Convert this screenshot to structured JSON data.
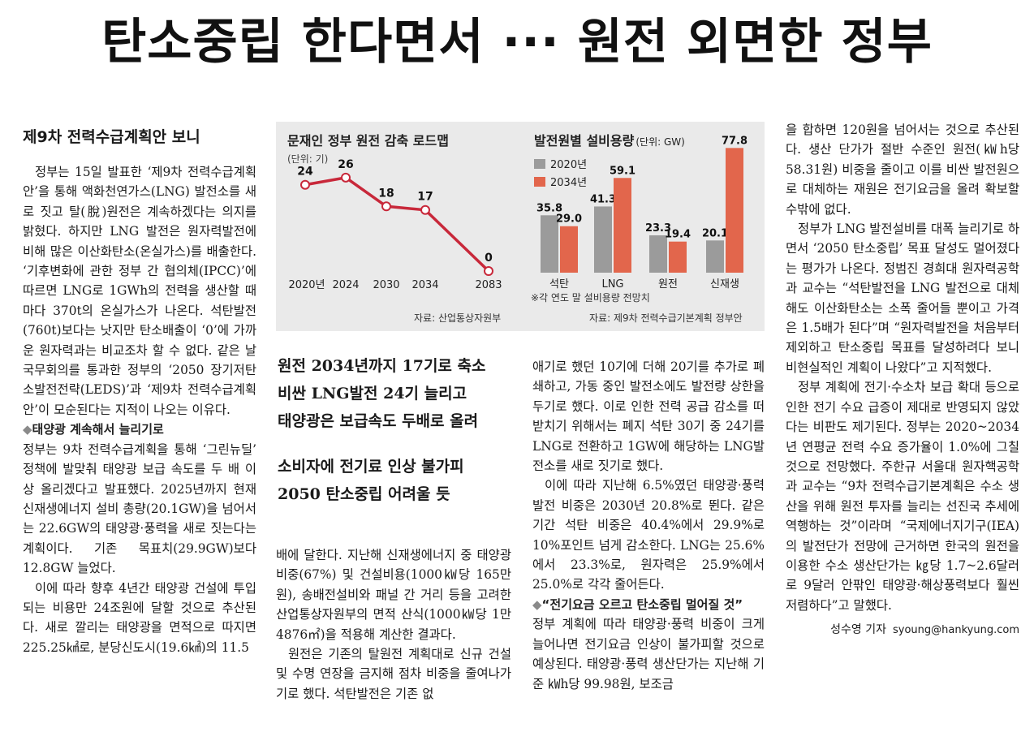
{
  "headline": "탄소중립 한다면서 ··· 원전 외면한 정부",
  "infobox": {
    "left_title": "문재인 정부 원전 감축 로드맵",
    "left_unit": "(단위: 기)",
    "left_source": "자료: 산업통상자원부",
    "right_title": "발전원별 설비용량",
    "right_unit": "(단위: GW)",
    "right_note": "※각 연도 말 설비용량 전망치",
    "right_source": "자료: 제9차 전력수급기본계획 정부안"
  },
  "chart_data": [
    {
      "type": "line",
      "title": "문재인 정부 원전 감축 로드맵",
      "ylabel": "(단위: 기)",
      "x": [
        "2020년",
        "2024",
        "2030",
        "2034",
        "2083"
      ],
      "values": [
        24,
        26,
        18,
        17,
        0
      ],
      "ylim": [
        0,
        28
      ],
      "color": "#c8283a"
    },
    {
      "type": "bar",
      "title": "발전원별 설비용량",
      "ylabel": "(단위: GW)",
      "categories": [
        "석탄",
        "LNG",
        "원전",
        "신재생"
      ],
      "series": [
        {
          "name": "2020년",
          "values": [
            35.8,
            41.3,
            23.3,
            20.1
          ],
          "color": "#9b9b9b"
        },
        {
          "name": "2034년",
          "values": [
            29.0,
            59.1,
            19.4,
            77.8
          ],
          "color": "#e2664c"
        }
      ],
      "ylim": [
        0,
        80
      ],
      "legend": "top-left"
    }
  ],
  "article": {
    "subhead": "제9차 전력수급계획안 보니",
    "col1": [
      "정부는 15일 발표한 ‘제9차 전력수급계획안’을 통해 액화천연가스(LNG) 발전소를 새로 짓고 탈(脫)원전은 계속하겠다는 의지를 밝혔다. 하지만 LNG 발전은 원자력발전에 비해 많은 이산화탄소(온실가스)를 배출한다. ‘기후변화에 관한 정부 간 협의체(IPCC)’에 따르면 LNG로 1GWh의 전력을 생산할 때마다 370t의 온실가스가 나온다. 석탄발전(760t)보다는 낫지만 탄소배출이 ‘0’에 가까운 원자력과는 비교조차 할 수 없다. 같은 날 국무회의를 통과한 정부의 ‘2050 장기저탄소발전전략(LEDS)’과 ‘제9차 전력수급계획안’이 모순된다는 지적이 나오는 이유다."
    ],
    "mini1": "태양광 계속해서 늘리기로",
    "mini_bullet": "◆",
    "col1b": [
      "정부는 9차 전력수급계획을 통해 ‘그린뉴딜’ 정책에 발맞춰 태양광 보급 속도를 두 배 이상 올리겠다고 발표했다. 2025년까지 현재 신재생에너지 설비 총량(20.1GW)을 넘어서는 22.6GW의 태양광·풍력을 새로 짓는다는 계획이다. 기존 목표치(29.9GW)보다 12.8GW 늘었다.",
      "이에 따라 향후 4년간 태양광 건설에 투입되는 비용만 24조원에 달할 것으로 추산된다. 새로 깔리는 태양광을 면적으로 따지면 225.25㎢로, 분당신도시(19.6㎢)의 11.5"
    ],
    "deck": [
      "원전 2034년까지 17기로 축소",
      "비싼 LNG발전 24기 늘리고",
      "태양광은 보급속도 두배로 올려",
      "소비자에 전기료 인상 불가피",
      "2050 탄소중립 어려울 듯"
    ],
    "col2": [
      "배에 달한다. 지난해 신재생에너지 중 태양광 비중(67%) 및 건설비용(1000㎾당 165만원), 송배전설비와 패널 간 거리 등을 고려한 산업통상자원부의 면적 산식(1000㎾당 1만4876㎡)을 적용해 계산한 결과다.",
      "원전은 기존의 탈원전 계획대로 신규 건설 및 수명 연장을 금지해 점차 비중을 줄여나가기로 했다. 석탄발전은 기존 없"
    ],
    "col3": [
      "애기로 했던 10기에 더해 20기를 추가로 폐쇄하고, 가동 중인 발전소에도 발전량 상한을 두기로 했다. 이로 인한 전력 공급 감소를 떠받치기 위해서는 폐지 석탄 30기 중 24기를 LNG로 전환하고 1GW에 해당하는 LNG발전소를 새로 짓기로 했다.",
      "이에 따라 지난해 6.5%였던 태양광·풍력발전 비중은 2030년 20.8%로 뛴다. 같은 기간 석탄 비중은 40.4%에서 29.9%로 10%포인트 넘게 감소한다. LNG는 25.6%에서 23.3%로, 원자력은 25.9%에서 25.0%로 각각 줄어든다."
    ],
    "mini2": "“전기요금 오르고 탄소중립 멀어질 것”",
    "col3b": [
      "정부 계획에 따라 태양광·풍력 비중이 크게 늘어나면 전기요금 인상이 불가피할 것으로 예상된다. 태양광·풍력 생산단가는 지난해 기준 ㎾h당 99.98원, 보조금"
    ],
    "col4": [
      "을 합하면 120원을 넘어서는 것으로 추산된다. 생산 단가가 절반 수준인 원전(㎾h당 58.31원) 비중을 줄이고 이를 비싼 발전원으로 대체하는 재원은 전기요금을 올려 확보할 수밖에 없다.",
      "정부가 LNG 발전설비를 대폭 늘리기로 하면서 ‘2050 탄소중립’ 목표 달성도 멀어졌다는 평가가 나온다. 정범진 경희대 원자력공학과 교수는 “석탄발전을 LNG 발전으로 대체해도 이산화탄소는 소폭 줄어들 뿐이고 가격은 1.5배가 된다”며 “원자력발전을 처음부터 제외하고 탄소중립 목표를 달성하려다 보니 비현실적인 계획이 나왔다”고 지적했다.",
      "정부 계획에 전기·수소차 보급 확대 등으로 인한 전기 수요 급증이 제대로 반영되지 않았다는 비판도 제기된다. 정부는 2020~2034년 연평균 전력 수요 증가율이 1.0%에 그칠 것으로 전망했다. 주한규 서울대 원자핵공학과 교수는 “9차 전력수급기본계획은 수소 생산을 위해 원전 투자를 늘리는 선진국 추세에 역행하는 것”이라며 “국제에너지기구(IEA)의 발전단가 전망에 근거하면 한국의 원전을 이용한 수소 생산단가는 ㎏당 1.7~2.6달러로 9달러 안팎인 태양광·해상풍력보다 훨씬 저렴하다”고 말했다."
    ],
    "reporter": "성수영 기자",
    "email": "syoung@hankyung.com"
  }
}
